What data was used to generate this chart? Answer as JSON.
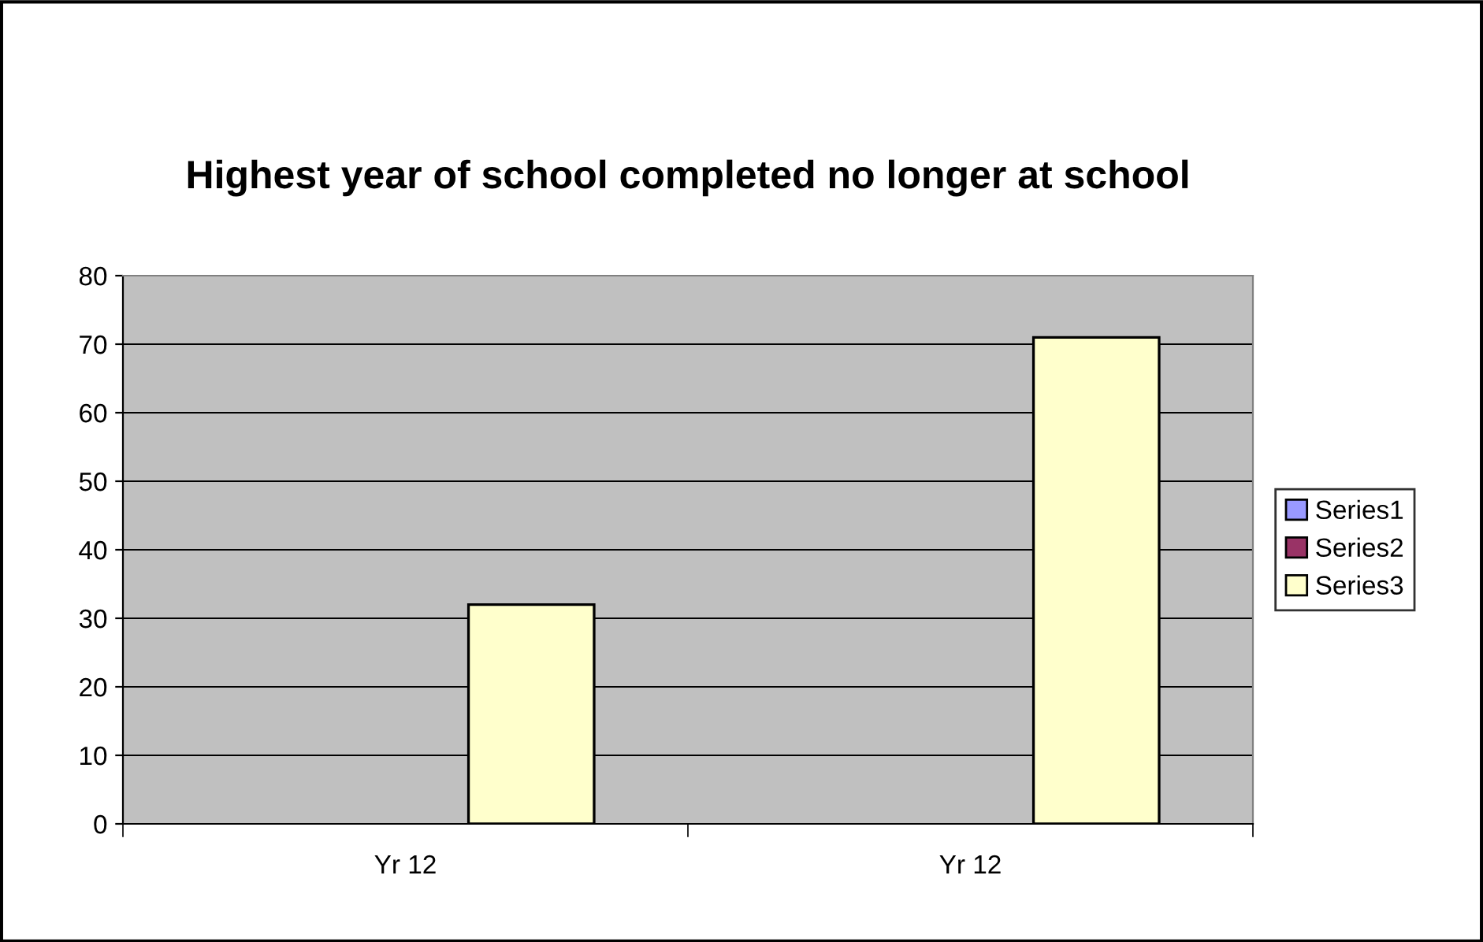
{
  "chart_data": {
    "type": "bar",
    "title": "Highest year of school completed no longer at school",
    "categories": [
      "Yr 12",
      "Yr 12"
    ],
    "series": [
      {
        "name": "Series1",
        "color": "#9999ff",
        "values": [
          null,
          null
        ]
      },
      {
        "name": "Series2",
        "color": "#993366",
        "values": [
          null,
          null
        ]
      },
      {
        "name": "Series3",
        "color": "#ffffcc",
        "values": [
          32,
          71
        ]
      }
    ],
    "ylim": [
      0,
      80
    ],
    "yticks": [
      0,
      10,
      20,
      30,
      40,
      50,
      60,
      70,
      80
    ],
    "grid": "y",
    "legend": "right"
  }
}
